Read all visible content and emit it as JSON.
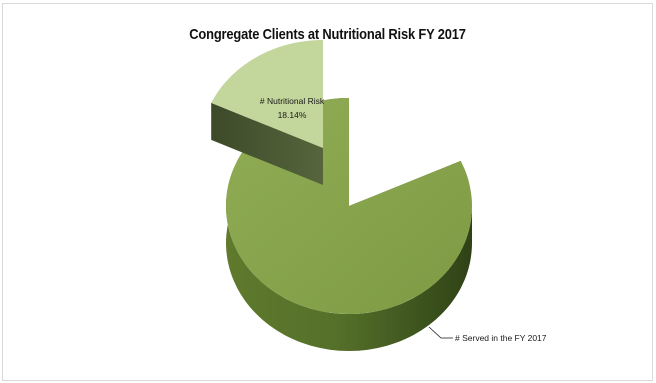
{
  "chart_data": {
    "type": "pie",
    "title": "Congregate Clients at Nutritional Risk FY 2017",
    "slices": [
      {
        "label": "# Nutritional Risk",
        "percent_label": "18.14%",
        "value": 18.14,
        "color": "#c3d69b",
        "exploded": true
      },
      {
        "label": "# Served in the FY 2017",
        "value": 81.86,
        "color": "#86a34a",
        "exploded": false
      }
    ],
    "legend": "none",
    "grid": false,
    "style": "3d-pie"
  }
}
